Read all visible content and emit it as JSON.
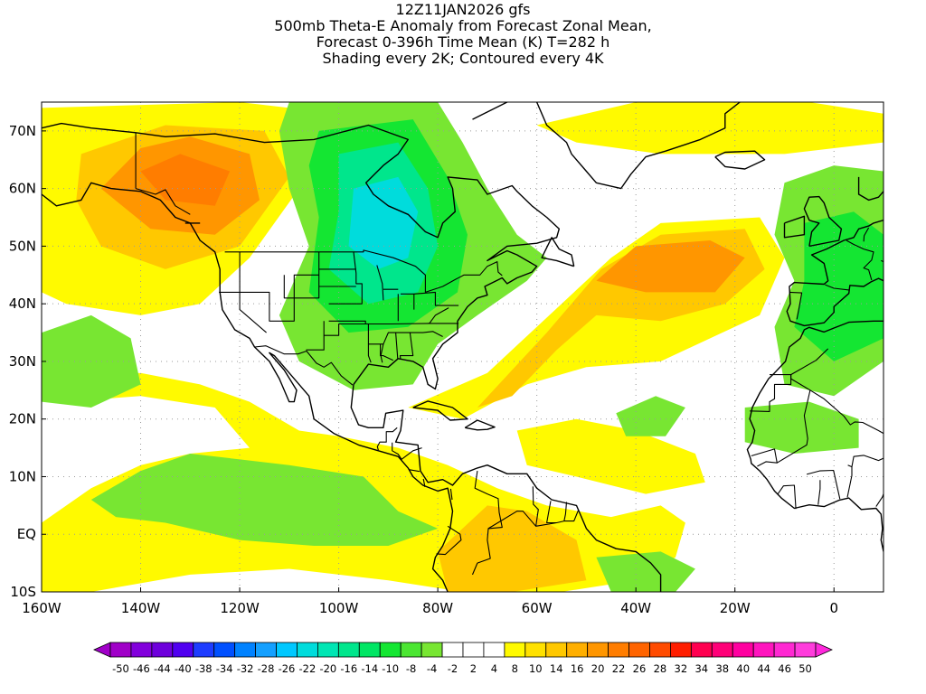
{
  "title": {
    "line1": "12Z11JAN2026 gfs",
    "line2": "500mb Theta-E Anomaly from Forecast Zonal Mean,",
    "line3": "Forecast 0-396h Time Mean (K) T=282 h",
    "line4": "Shading every 2K; Contoured every 4K"
  },
  "map": {
    "lon_range": [
      -160,
      10
    ],
    "lat_range": [
      -10,
      75
    ],
    "lat_ticks": [
      {
        "value": 70,
        "label": "70N"
      },
      {
        "value": 60,
        "label": "60N"
      },
      {
        "value": 50,
        "label": "50N"
      },
      {
        "value": 40,
        "label": "40N"
      },
      {
        "value": 30,
        "label": "30N"
      },
      {
        "value": 20,
        "label": "20N"
      },
      {
        "value": 10,
        "label": "10N"
      },
      {
        "value": 0,
        "label": "EQ"
      },
      {
        "value": -10,
        "label": "10S"
      }
    ],
    "lon_ticks": [
      {
        "value": -160,
        "label": "160W"
      },
      {
        "value": -140,
        "label": "140W"
      },
      {
        "value": -120,
        "label": "120W"
      },
      {
        "value": -100,
        "label": "100W"
      },
      {
        "value": -80,
        "label": "80W"
      },
      {
        "value": -60,
        "label": "60W"
      },
      {
        "value": -40,
        "label": "40W"
      },
      {
        "value": -20,
        "label": "20W"
      },
      {
        "value": 0,
        "label": "0"
      }
    ],
    "grid": "dotted"
  },
  "colorbar": {
    "labels": [
      "-50",
      "-46",
      "-44",
      "-40",
      "-38",
      "-34",
      "-32",
      "-28",
      "-26",
      "-22",
      "-20",
      "-16",
      "-14",
      "-10",
      "-8",
      "-4",
      "-2",
      "2",
      "4",
      "8",
      "10",
      "14",
      "16",
      "20",
      "22",
      "26",
      "28",
      "32",
      "34",
      "38",
      "40",
      "44",
      "46",
      "50"
    ],
    "colors": [
      "#a000c8",
      "#8200dc",
      "#6e00dc",
      "#5000f0",
      "#1e3cff",
      "#0050ff",
      "#0082ff",
      "#14a0ff",
      "#00c8ff",
      "#00dcdc",
      "#00e6b4",
      "#00e68c",
      "#00e664",
      "#14e632",
      "#4be632",
      "#78e632",
      "#ffffff",
      "#ffffff",
      "#ffffff",
      "#fffa00",
      "#ffe100",
      "#ffc800",
      "#ffaf00",
      "#ff9600",
      "#ff7d00",
      "#ff6400",
      "#ff4b00",
      "#ff1e00",
      "#ff0050",
      "#ff0078",
      "#ff00a0",
      "#ff14be",
      "#ff28d2",
      "#ff3cdc"
    ],
    "under_color": "#a000c8",
    "over_color": "#ff28dc"
  },
  "fill_colors": {
    "yellow": "#fffa00",
    "light_orange": "#ffc800",
    "orange": "#ff9600",
    "dark_orange": "#ff7d00",
    "light_green": "#78e632",
    "green": "#14e632",
    "sea_green": "#00e68c",
    "teal": "#00dcdc"
  }
}
